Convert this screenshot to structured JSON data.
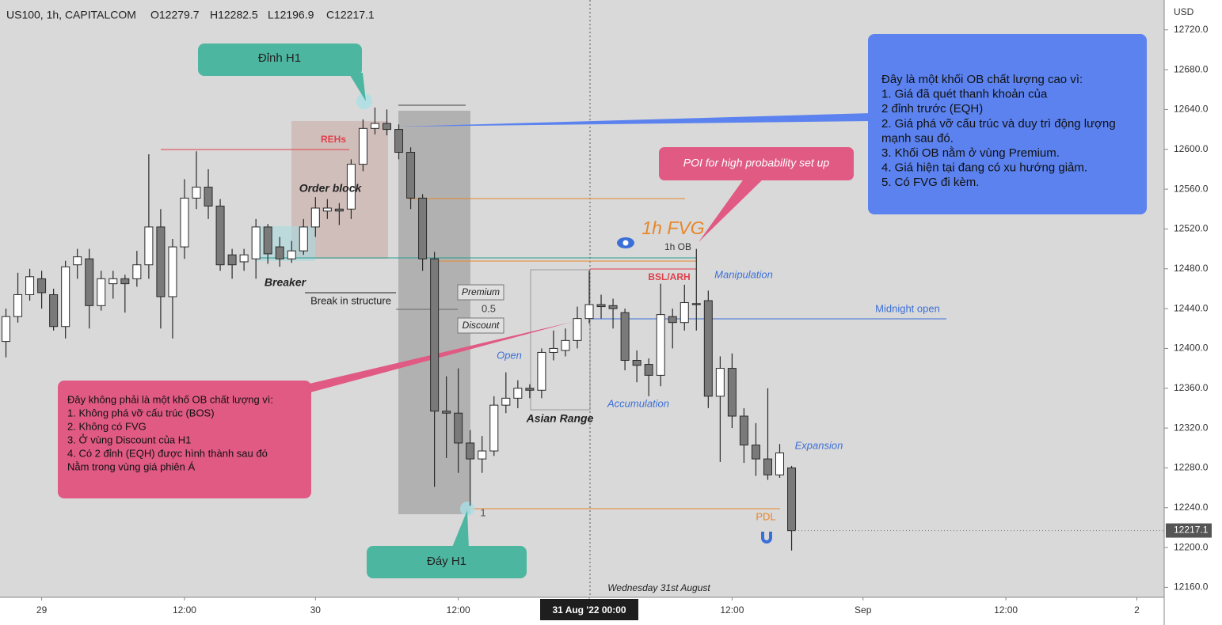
{
  "chart_data": {
    "type": "candlestick",
    "symbol": "US100, 1h, CAPITALCOM",
    "ohlc_labels": [
      "O12279.7",
      "H12282.5",
      "L12196.9",
      "C12217.1"
    ],
    "currency": "USD",
    "up_color": "#ffffff",
    "down_color": "#7a7a7a",
    "x": [
      -3,
      -2,
      -1,
      0,
      1,
      2,
      3,
      4,
      5,
      6,
      7,
      8,
      9,
      10,
      11,
      12,
      13,
      14,
      15,
      16,
      17,
      18,
      19,
      20,
      21,
      22,
      23,
      24,
      25,
      26,
      27,
      28,
      29,
      30,
      31,
      32,
      33,
      34,
      35,
      36,
      37,
      38,
      39,
      40,
      41,
      42,
      43,
      44,
      45,
      46,
      47,
      48,
      49,
      50,
      51,
      52,
      53,
      54,
      55,
      56,
      57,
      58,
      59,
      60,
      61,
      62,
      63
    ],
    "open": [
      12407,
      12432,
      12454,
      12470,
      12454,
      12422,
      12484,
      12490,
      12443,
      12465,
      12470,
      12470,
      12484,
      12522,
      12452,
      12502,
      12551,
      12562,
      12543,
      12494,
      12487,
      12490,
      12522,
      12502,
      12490,
      12498,
      12522,
      12538,
      12540,
      12540,
      12585,
      12621,
      12626,
      12620,
      12597,
      12551,
      12490,
      12337,
      12335,
      12305,
      12289,
      12297,
      12343,
      12350,
      12360,
      12358,
      12396,
      12398,
      12408,
      12430,
      12444,
      12443,
      12436,
      12388,
      12384,
      12373,
      12432,
      12426,
      12445,
      12448,
      12352,
      12380,
      12332,
      12303,
      12289,
      12273,
      12280
    ],
    "high": [
      12440,
      12476,
      12480,
      12478,
      12460,
      12488,
      12500,
      12500,
      12478,
      12478,
      12474,
      12498,
      12595,
      12540,
      12510,
      12570,
      12598,
      12580,
      12550,
      12500,
      12500,
      12530,
      12525,
      12512,
      12508,
      12530,
      12552,
      12550,
      12546,
      12590,
      12630,
      12642,
      12640,
      12625,
      12602,
      12555,
      12497,
      12372,
      12380,
      12318,
      12312,
      12352,
      12376,
      12368,
      12364,
      12400,
      12418,
      12420,
      12442,
      12478,
      12454,
      12450,
      12440,
      12398,
      12390,
      12465,
      12440,
      12464,
      12500,
      12458,
      12392,
      12395,
      12340,
      12325,
      12360,
      12304,
      12282
    ],
    "low": [
      12391,
      12426,
      12448,
      12440,
      12418,
      12410,
      12470,
      12420,
      12438,
      12450,
      12436,
      12462,
      12470,
      12420,
      12410,
      12490,
      12540,
      12530,
      12478,
      12470,
      12478,
      12470,
      12485,
      12482,
      12486,
      12494,
      12512,
      12530,
      12524,
      12530,
      12578,
      12615,
      12614,
      12590,
      12540,
      12478,
      12261,
      12290,
      12275,
      12242,
      12275,
      12292,
      12335,
      12340,
      12350,
      12350,
      12388,
      12392,
      12400,
      12425,
      12430,
      12420,
      12378,
      12366,
      12352,
      12362,
      12400,
      12418,
      12418,
      12340,
      12286,
      12320,
      12285,
      12272,
      12268,
      12270,
      12197
    ],
    "close": [
      12432,
      12454,
      12472,
      12456,
      12422,
      12482,
      12492,
      12443,
      12470,
      12470,
      12465,
      12484,
      12522,
      12452,
      12502,
      12551,
      12562,
      12543,
      12484,
      12484,
      12494,
      12522,
      12495,
      12490,
      12498,
      12522,
      12541,
      12541,
      12538,
      12585,
      12621,
      12626,
      12620,
      12597,
      12551,
      12490,
      12337,
      12335,
      12305,
      12289,
      12297,
      12343,
      12350,
      12360,
      12358,
      12396,
      12400,
      12408,
      12430,
      12444,
      12442,
      12440,
      12388,
      12383,
      12373,
      12434,
      12426,
      12446,
      12444,
      12352,
      12380,
      12332,
      12303,
      12289,
      12273,
      12295,
      12217
    ],
    "xlim": [
      -3.5,
      94.3
    ],
    "ylim": [
      12150,
      12750
    ],
    "xticks": [
      {
        "value": 0,
        "label": "29"
      },
      {
        "value": 12,
        "label": "12:00"
      },
      {
        "value": 23,
        "label": "30"
      },
      {
        "value": 35,
        "label": "12:00"
      },
      {
        "value": 46,
        "label": "31 Aug '22   00:00"
      },
      {
        "value": 58,
        "label": "12:00"
      },
      {
        "value": 69,
        "label": "Sep"
      },
      {
        "value": 81,
        "label": "12:00"
      },
      {
        "value": 92,
        "label": "2"
      }
    ],
    "yticks": [
      {
        "value": 12160,
        "label": "12160.0"
      },
      {
        "value": 12200,
        "label": "12200.0"
      },
      {
        "value": 12240,
        "label": "12240.0"
      },
      {
        "value": 12280,
        "label": "12280.0"
      },
      {
        "value": 12320,
        "label": "12320.0"
      },
      {
        "value": 12360,
        "label": "12360.0"
      },
      {
        "value": 12400,
        "label": "12400.0"
      },
      {
        "value": 12440,
        "label": "12440.0"
      },
      {
        "value": 12480,
        "label": "12480.0"
      },
      {
        "value": 12520,
        "label": "12520.0"
      },
      {
        "value": 12560,
        "label": "12560.0"
      },
      {
        "value": 12600,
        "label": "12600.0"
      },
      {
        "value": 12640,
        "label": "12640.0"
      },
      {
        "value": 12680,
        "label": "12680.0"
      },
      {
        "value": 12720,
        "label": "12720.0"
      }
    ],
    "last_price": 12217.1,
    "annotations": [
      "Đỉnh H1",
      "Đáy H1",
      "REHs",
      "Order block",
      "Breaker",
      "Break in structure",
      "Premium",
      "0.5",
      "Discount",
      "1",
      "Open",
      "Asian Range",
      "Accumulation",
      "Manipulation",
      "BSL/ARH",
      "1h FVG",
      "1h OB",
      "Midnight open",
      "Expansion",
      "PDL",
      "POI for high probability set up",
      "Wednesday 31st August"
    ],
    "note_good": [
      "Đây là một khối OB chất lượng cao vì:",
      "1. Giá đã quét thanh khoản của",
      "2 đỉnh trước (EQH)",
      "2. Giá phá vỡ cấu trúc và duy trì động lượng",
      "mạnh sau đó.",
      "3. Khối OB nằm ở vùng Premium.",
      "4. Giá hiện tại đang có xu hướng giảm.",
      "5. Có FVG đi kèm."
    ],
    "note_bad": [
      "Đây không phải là một khố OB chất lượng vì:",
      "1. Không phá vỡ cấu trúc (BOS)",
      "2. Không có FVG",
      "3. Ở vùng Discount của H1",
      "4. Có 2 đỉnh (EQH) được hình thành sau đó",
      "Nằm trong vùng giá phiên Á"
    ]
  }
}
